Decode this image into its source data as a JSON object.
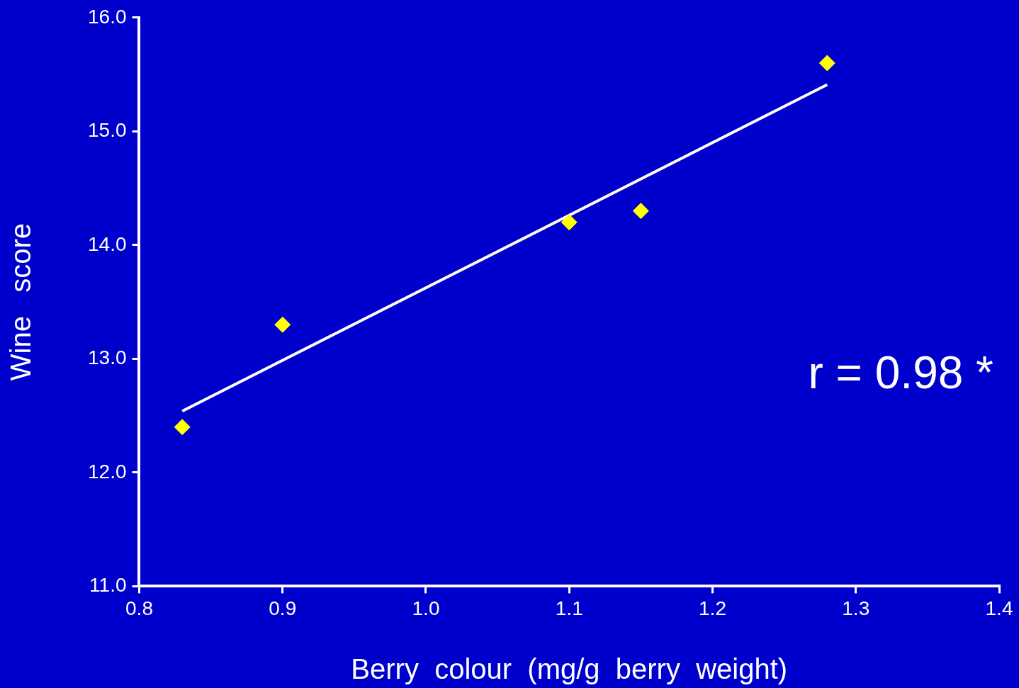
{
  "chart_data": {
    "type": "scatter",
    "xlabel": "Berry  colour  (mg/g  berry  weight)",
    "ylabel": "Wine   score",
    "xlim": [
      0.8,
      1.4
    ],
    "xticks": [
      {
        "value": 0.8,
        "label": "0.8"
      },
      {
        "value": 0.9,
        "label": "0.9"
      },
      {
        "value": 1.0,
        "label": "1.0"
      },
      {
        "value": 1.1,
        "label": "1.1"
      },
      {
        "value": 1.2,
        "label": "1.2"
      },
      {
        "value": 1.3,
        "label": "1.3"
      },
      {
        "value": 1.4,
        "label": "1.4"
      }
    ],
    "ylim": [
      11,
      16
    ],
    "yticks": [
      {
        "value": 11,
        "label": "11.0"
      },
      {
        "value": 12,
        "label": "12.0"
      },
      {
        "value": 13,
        "label": "13.0"
      },
      {
        "value": 14,
        "label": "14.0"
      },
      {
        "value": 15,
        "label": "15.0"
      },
      {
        "value": 16,
        "label": "16.0"
      }
    ],
    "grid": false,
    "legend": false,
    "marker": "diamond",
    "annotations": [
      "r = 0.98 *"
    ],
    "series": [
      {
        "color": "#ffff00",
        "x": [
          0.83,
          0.9,
          1.1,
          1.15,
          1.28
        ],
        "values": [
          12.4,
          13.3,
          14.2,
          14.3,
          15.6
        ]
      },
      {
        "type": "line",
        "color": "#ffffff",
        "x": [
          0.83,
          1.28
        ],
        "values": [
          12.54,
          15.41
        ],
        "marker": "none",
        "line_style": "solid"
      }
    ]
  }
}
